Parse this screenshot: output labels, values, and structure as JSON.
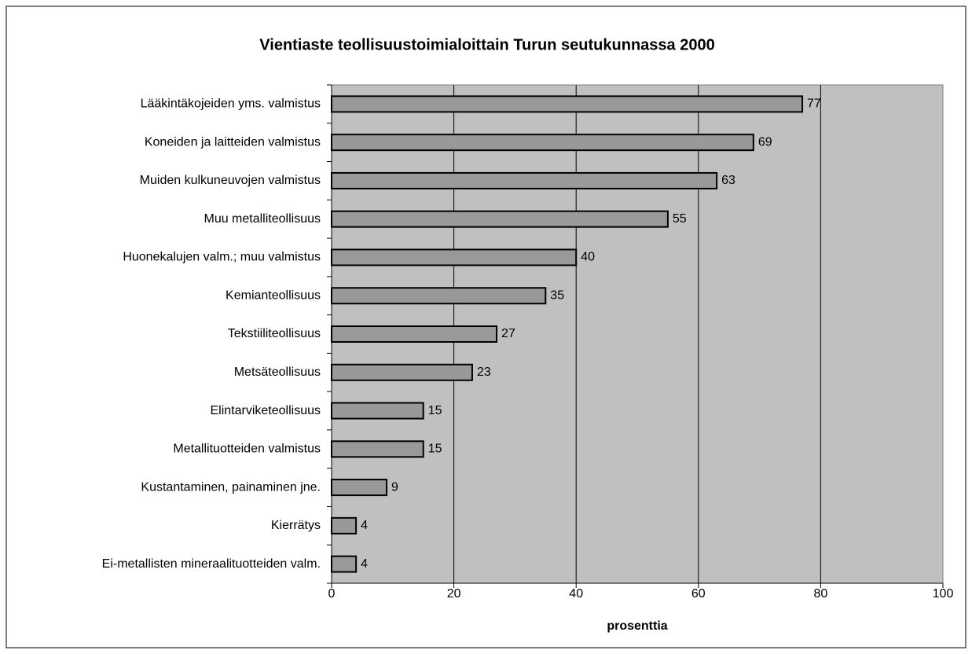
{
  "chart_data": {
    "type": "bar",
    "orientation": "horizontal",
    "title": "Vientiaste teollisuustoimialoittain Turun seutukunnassa 2000",
    "x_label": "prosenttia",
    "categories": [
      "Lääkintäkojeiden yms. valmistus",
      "Koneiden ja laitteiden valmistus",
      "Muiden kulkuneuvojen valmistus",
      "Muu metalliteollisuus",
      "Huonekalujen valm.; muu valmistus",
      "Kemianteollisuus",
      "Tekstiiliteollisuus",
      "Metsäteollisuus",
      "Elintarviketeollisuus",
      "Metallituotteiden valmistus",
      "Kustantaminen, painaminen jne.",
      "Kierrätys",
      "Ei-metallisten mineraalituotteiden valm."
    ],
    "values": [
      77,
      69,
      63,
      55,
      40,
      35,
      27,
      23,
      15,
      15,
      9,
      4,
      4
    ],
    "color": "#999999",
    "xlim": [
      0,
      100
    ],
    "xticks": [
      0,
      20,
      40,
      60,
      80,
      100
    ],
    "grid": true
  }
}
